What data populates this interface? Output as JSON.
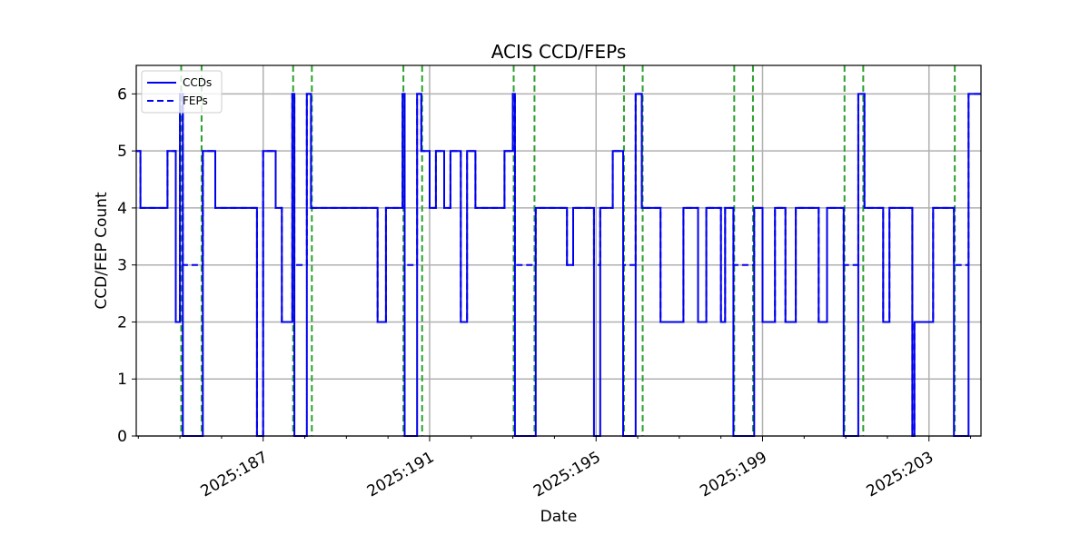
{
  "chart_data": {
    "type": "line",
    "title": "ACIS CCD/FEPs",
    "xlabel": "Date",
    "ylabel": "CCD/FEP Count",
    "xlim": [
      183.95,
      204.25
    ],
    "ylim": [
      0,
      6.5
    ],
    "x_ticks": [
      187,
      191,
      195,
      199,
      203
    ],
    "x_tick_labels": [
      "2025:187",
      "2025:191",
      "2025:195",
      "2025:199",
      "2025:203"
    ],
    "x_minor_ticks": [
      184,
      185,
      186,
      188,
      189,
      190,
      192,
      193,
      194,
      196,
      197,
      198,
      200,
      201,
      202,
      204
    ],
    "y_ticks": [
      0,
      1,
      2,
      3,
      4,
      5,
      6
    ],
    "y_tick_labels": [
      "0",
      "1",
      "2",
      "3",
      "4",
      "5",
      "6"
    ],
    "grid": true,
    "legend": "top-left",
    "colors": {
      "series": "#0000ee",
      "vlines": "#2ca02c"
    },
    "series": [
      {
        "name": "CCDs",
        "style": "solid",
        "steps": [
          [
            183.95,
            5
          ],
          [
            184.05,
            5
          ],
          [
            184.05,
            4
          ],
          [
            184.7,
            4
          ],
          [
            184.7,
            5
          ],
          [
            184.9,
            5
          ],
          [
            184.9,
            2
          ],
          [
            185.0,
            2
          ],
          [
            185.0,
            6
          ],
          [
            185.07,
            6
          ],
          [
            185.07,
            0
          ],
          [
            185.55,
            0
          ],
          [
            185.55,
            5
          ],
          [
            185.85,
            5
          ],
          [
            185.85,
            4
          ],
          [
            186.85,
            4
          ],
          [
            186.85,
            0
          ],
          [
            187.0,
            0
          ],
          [
            187.0,
            5
          ],
          [
            187.3,
            5
          ],
          [
            187.3,
            4
          ],
          [
            187.45,
            4
          ],
          [
            187.45,
            2
          ],
          [
            187.7,
            2
          ],
          [
            187.7,
            6
          ],
          [
            187.75,
            6
          ],
          [
            187.75,
            0
          ],
          [
            188.05,
            0
          ],
          [
            188.05,
            6
          ],
          [
            188.15,
            6
          ],
          [
            188.15,
            4
          ],
          [
            189.75,
            4
          ],
          [
            189.75,
            2
          ],
          [
            189.95,
            2
          ],
          [
            189.95,
            4
          ],
          [
            190.35,
            4
          ],
          [
            190.35,
            6
          ],
          [
            190.4,
            6
          ],
          [
            190.4,
            0
          ],
          [
            190.7,
            0
          ],
          [
            190.7,
            6
          ],
          [
            190.8,
            6
          ],
          [
            190.8,
            5
          ],
          [
            191.0,
            5
          ],
          [
            191.0,
            4
          ],
          [
            191.15,
            4
          ],
          [
            191.15,
            5
          ],
          [
            191.35,
            5
          ],
          [
            191.35,
            4
          ],
          [
            191.5,
            4
          ],
          [
            191.5,
            5
          ],
          [
            191.75,
            5
          ],
          [
            191.75,
            2
          ],
          [
            191.9,
            2
          ],
          [
            191.9,
            5
          ],
          [
            192.1,
            5
          ],
          [
            192.1,
            4
          ],
          [
            192.8,
            4
          ],
          [
            192.8,
            5
          ],
          [
            193.0,
            5
          ],
          [
            193.0,
            6
          ],
          [
            193.05,
            6
          ],
          [
            193.05,
            0
          ],
          [
            193.55,
            0
          ],
          [
            193.55,
            4
          ],
          [
            194.3,
            4
          ],
          [
            194.3,
            3
          ],
          [
            194.45,
            3
          ],
          [
            194.45,
            4
          ],
          [
            194.95,
            4
          ],
          [
            194.95,
            0
          ],
          [
            195.1,
            0
          ],
          [
            195.1,
            4
          ],
          [
            195.4,
            4
          ],
          [
            195.4,
            5
          ],
          [
            195.65,
            5
          ],
          [
            195.65,
            0
          ],
          [
            195.95,
            0
          ],
          [
            195.95,
            6
          ],
          [
            196.1,
            6
          ],
          [
            196.1,
            4
          ],
          [
            196.55,
            4
          ],
          [
            196.55,
            2
          ],
          [
            197.1,
            2
          ],
          [
            197.1,
            4
          ],
          [
            197.45,
            4
          ],
          [
            197.45,
            2
          ],
          [
            197.65,
            2
          ],
          [
            197.65,
            4
          ],
          [
            198.0,
            4
          ],
          [
            198.0,
            2
          ],
          [
            198.1,
            2
          ],
          [
            198.1,
            4
          ],
          [
            198.3,
            4
          ],
          [
            198.3,
            0
          ],
          [
            198.8,
            0
          ],
          [
            198.8,
            4
          ],
          [
            199.0,
            4
          ],
          [
            199.0,
            2
          ],
          [
            199.3,
            2
          ],
          [
            199.3,
            4
          ],
          [
            199.55,
            4
          ],
          [
            199.55,
            2
          ],
          [
            199.8,
            2
          ],
          [
            199.8,
            4
          ],
          [
            200.35,
            4
          ],
          [
            200.35,
            2
          ],
          [
            200.55,
            2
          ],
          [
            200.55,
            4
          ],
          [
            200.95,
            4
          ],
          [
            200.95,
            0
          ],
          [
            201.3,
            0
          ],
          [
            201.3,
            6
          ],
          [
            201.45,
            6
          ],
          [
            201.45,
            4
          ],
          [
            201.9,
            4
          ],
          [
            201.9,
            2
          ],
          [
            202.05,
            2
          ],
          [
            202.05,
            4
          ],
          [
            202.6,
            4
          ],
          [
            202.6,
            0
          ],
          [
            202.65,
            0
          ],
          [
            202.65,
            2
          ],
          [
            203.1,
            2
          ],
          [
            203.1,
            4
          ],
          [
            203.6,
            4
          ],
          [
            203.6,
            0
          ],
          [
            203.95,
            0
          ],
          [
            203.95,
            6
          ],
          [
            204.25,
            6
          ]
        ]
      },
      {
        "name": "FEPs",
        "style": "dashed",
        "steps": [
          [
            183.95,
            5
          ],
          [
            184.05,
            5
          ],
          [
            184.05,
            4
          ],
          [
            184.7,
            4
          ],
          [
            184.7,
            5
          ],
          [
            184.9,
            5
          ],
          [
            184.9,
            2
          ],
          [
            185.0,
            2
          ],
          [
            185.0,
            6
          ],
          [
            185.07,
            6
          ],
          [
            185.07,
            3
          ],
          [
            185.55,
            3
          ],
          [
            185.55,
            5
          ],
          [
            185.85,
            5
          ],
          [
            185.85,
            4
          ],
          [
            186.85,
            4
          ],
          [
            186.85,
            0
          ],
          [
            187.0,
            0
          ],
          [
            187.0,
            5
          ],
          [
            187.3,
            5
          ],
          [
            187.3,
            4
          ],
          [
            187.45,
            4
          ],
          [
            187.45,
            2
          ],
          [
            187.7,
            2
          ],
          [
            187.7,
            6
          ],
          [
            187.75,
            6
          ],
          [
            187.75,
            3
          ],
          [
            188.05,
            3
          ],
          [
            188.05,
            6
          ],
          [
            188.15,
            6
          ],
          [
            188.15,
            4
          ],
          [
            189.75,
            4
          ],
          [
            189.75,
            2
          ],
          [
            189.95,
            2
          ],
          [
            189.95,
            4
          ],
          [
            190.35,
            4
          ],
          [
            190.35,
            6
          ],
          [
            190.4,
            6
          ],
          [
            190.4,
            3
          ],
          [
            190.7,
            3
          ],
          [
            190.7,
            6
          ],
          [
            190.8,
            6
          ],
          [
            190.8,
            5
          ],
          [
            191.0,
            5
          ],
          [
            191.0,
            4
          ],
          [
            191.15,
            4
          ],
          [
            191.15,
            5
          ],
          [
            191.35,
            5
          ],
          [
            191.35,
            4
          ],
          [
            191.5,
            4
          ],
          [
            191.5,
            5
          ],
          [
            191.75,
            5
          ],
          [
            191.75,
            2
          ],
          [
            191.9,
            2
          ],
          [
            191.9,
            5
          ],
          [
            192.1,
            5
          ],
          [
            192.1,
            4
          ],
          [
            192.8,
            4
          ],
          [
            192.8,
            5
          ],
          [
            193.0,
            5
          ],
          [
            193.0,
            6
          ],
          [
            193.05,
            6
          ],
          [
            193.05,
            3
          ],
          [
            193.55,
            3
          ],
          [
            193.55,
            4
          ],
          [
            194.3,
            4
          ],
          [
            194.3,
            3
          ],
          [
            194.45,
            3
          ],
          [
            194.45,
            4
          ],
          [
            194.95,
            4
          ],
          [
            194.95,
            3
          ],
          [
            195.1,
            3
          ],
          [
            195.1,
            4
          ],
          [
            195.4,
            4
          ],
          [
            195.4,
            5
          ],
          [
            195.65,
            5
          ],
          [
            195.65,
            3
          ],
          [
            195.95,
            3
          ],
          [
            195.95,
            6
          ],
          [
            196.1,
            6
          ],
          [
            196.1,
            4
          ],
          [
            196.55,
            4
          ],
          [
            196.55,
            2
          ],
          [
            197.1,
            2
          ],
          [
            197.1,
            4
          ],
          [
            197.45,
            4
          ],
          [
            197.45,
            2
          ],
          [
            197.65,
            2
          ],
          [
            197.65,
            4
          ],
          [
            198.0,
            4
          ],
          [
            198.0,
            2
          ],
          [
            198.1,
            2
          ],
          [
            198.1,
            4
          ],
          [
            198.3,
            4
          ],
          [
            198.3,
            3
          ],
          [
            198.8,
            3
          ],
          [
            198.8,
            4
          ],
          [
            199.0,
            4
          ],
          [
            199.0,
            2
          ],
          [
            199.3,
            2
          ],
          [
            199.3,
            4
          ],
          [
            199.55,
            4
          ],
          [
            199.55,
            2
          ],
          [
            199.8,
            2
          ],
          [
            199.8,
            4
          ],
          [
            200.35,
            4
          ],
          [
            200.35,
            2
          ],
          [
            200.55,
            2
          ],
          [
            200.55,
            4
          ],
          [
            200.95,
            4
          ],
          [
            200.95,
            3
          ],
          [
            201.3,
            3
          ],
          [
            201.3,
            6
          ],
          [
            201.45,
            6
          ],
          [
            201.45,
            4
          ],
          [
            201.9,
            4
          ],
          [
            201.9,
            2
          ],
          [
            202.05,
            2
          ],
          [
            202.05,
            4
          ],
          [
            202.6,
            4
          ],
          [
            202.6,
            0
          ],
          [
            202.65,
            0
          ],
          [
            202.65,
            2
          ],
          [
            203.1,
            2
          ],
          [
            203.1,
            4
          ],
          [
            203.6,
            4
          ],
          [
            203.6,
            3
          ],
          [
            203.95,
            3
          ],
          [
            203.95,
            6
          ],
          [
            204.25,
            6
          ]
        ]
      }
    ],
    "vertical_lines": [
      185.03,
      185.52,
      187.72,
      188.17,
      190.37,
      190.82,
      193.02,
      193.52,
      195.67,
      196.12,
      198.32,
      198.77,
      200.97,
      201.42,
      203.62
    ]
  }
}
